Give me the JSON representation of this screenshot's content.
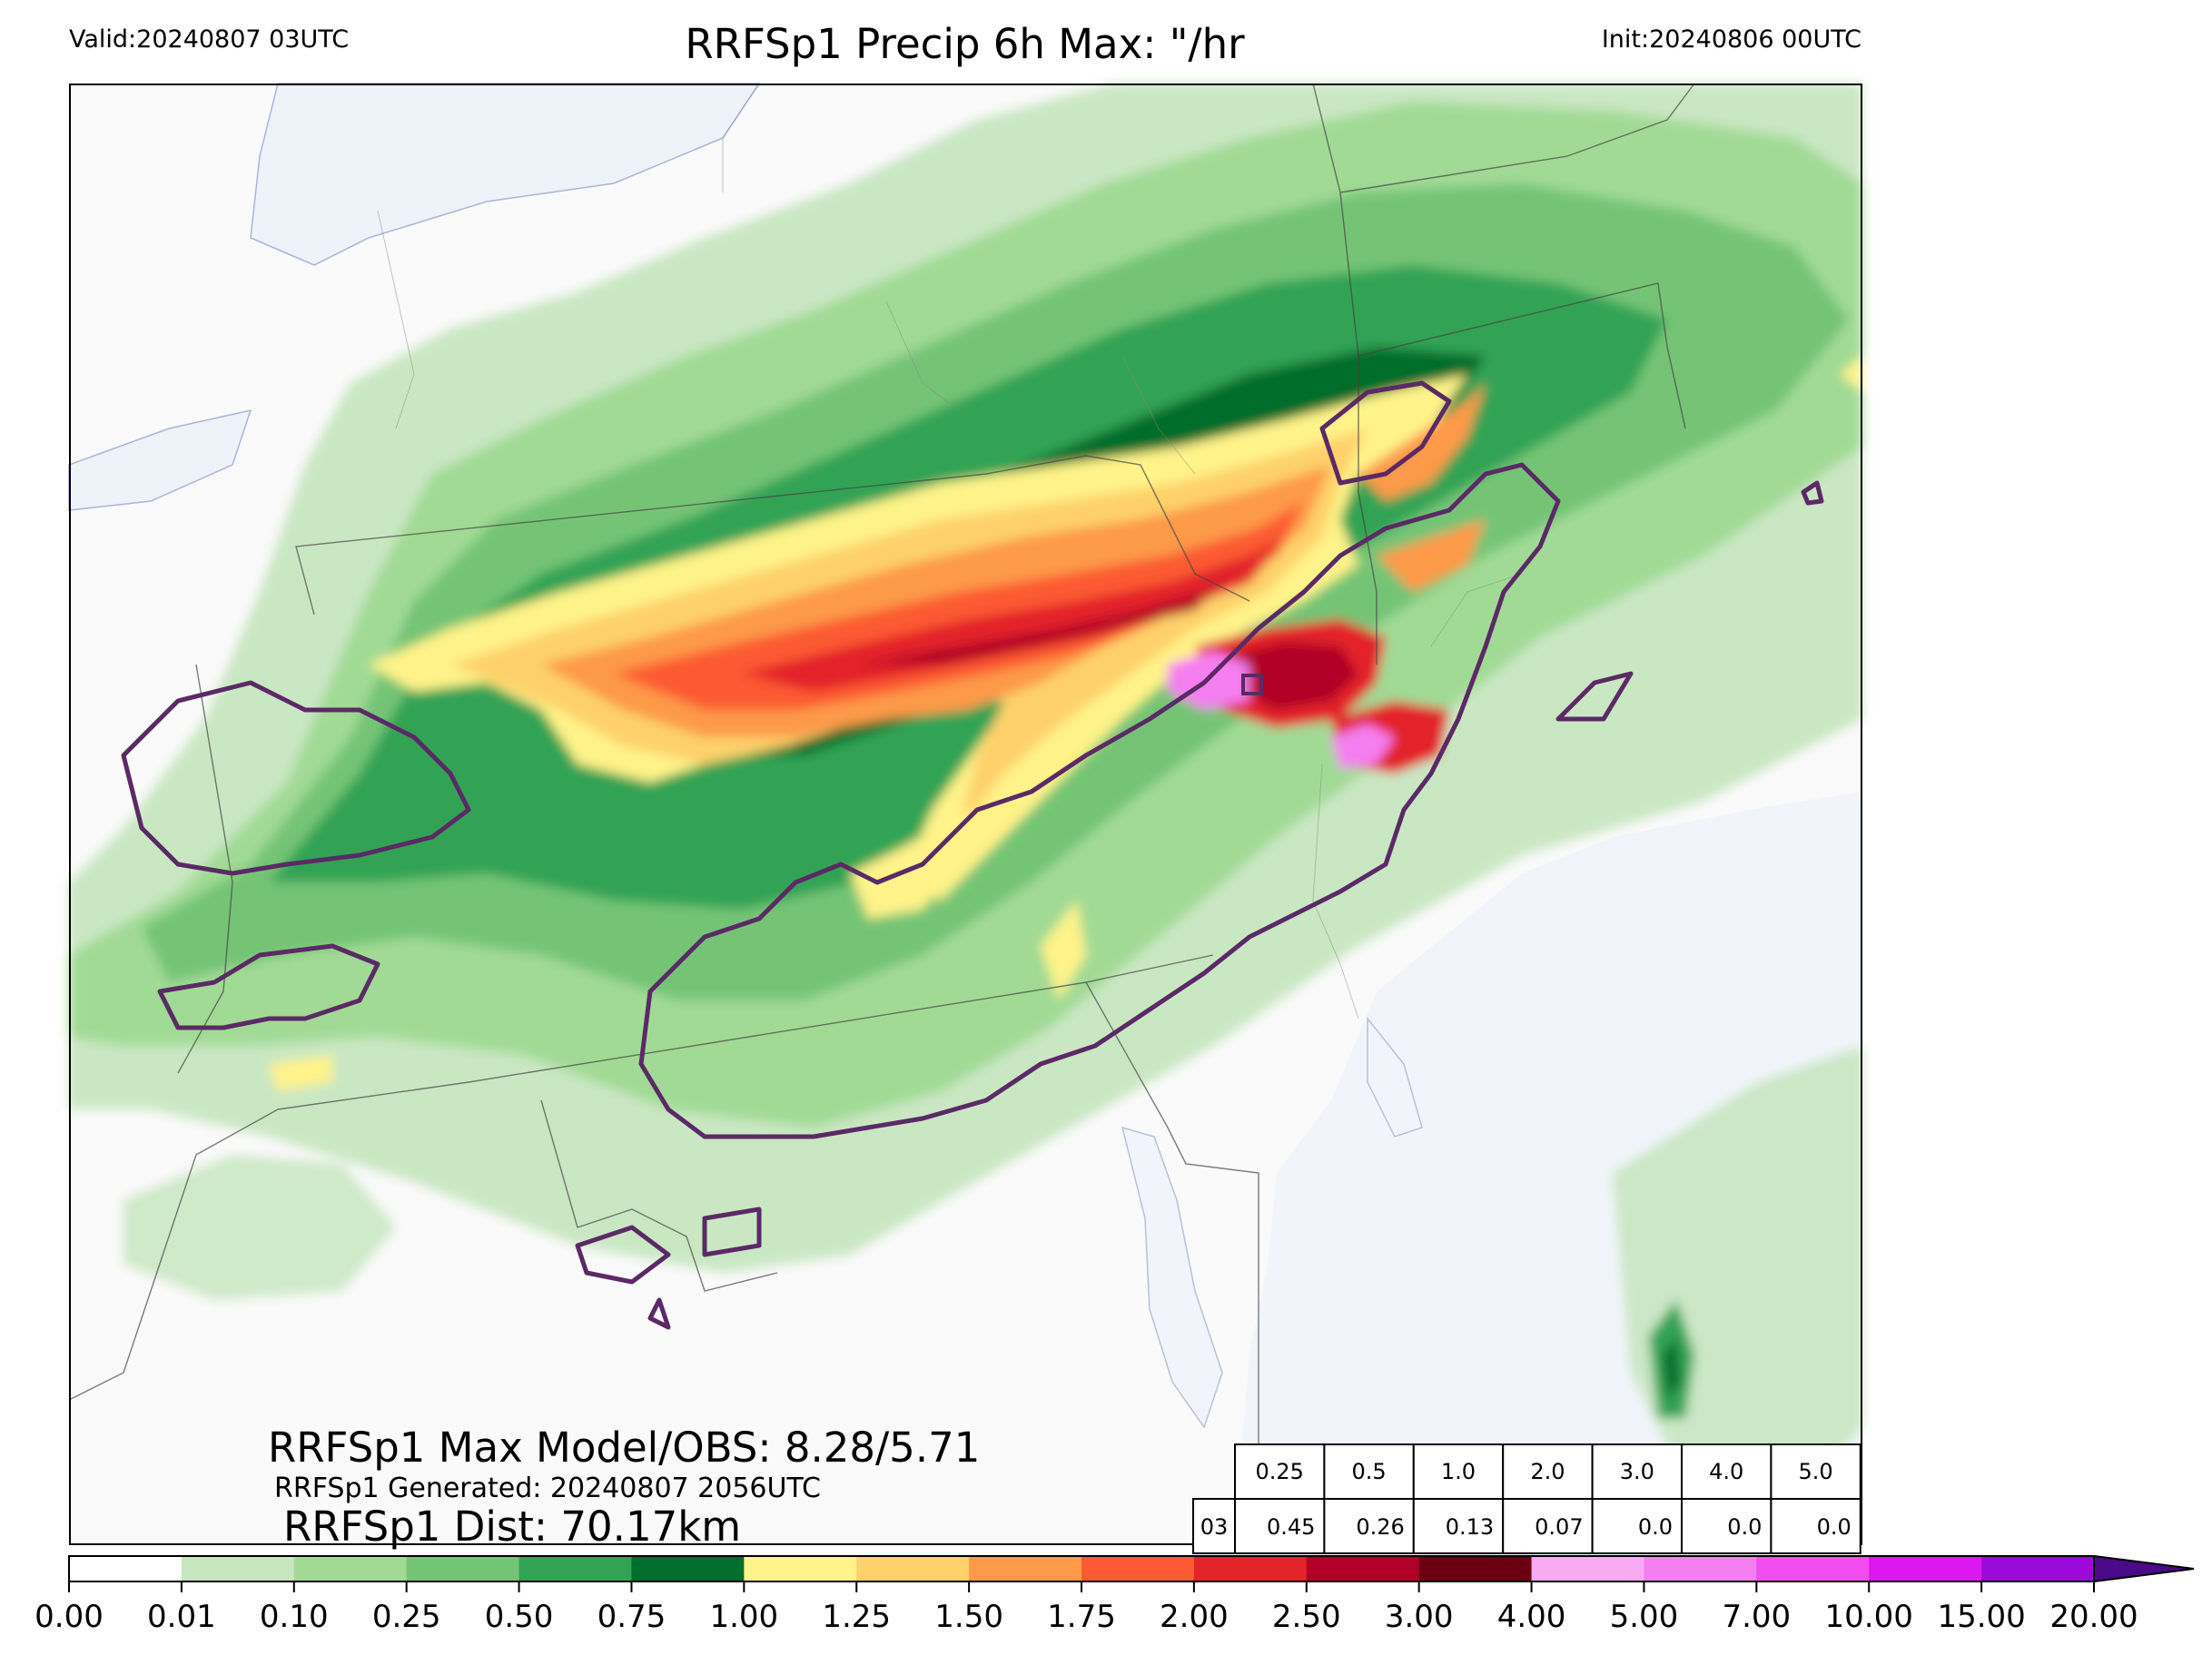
{
  "header": {
    "valid": "Valid:20240807 03UTC",
    "title": "RRFSp1 Precip 6h Max: \"/hr",
    "init": "Init:20240806 00UTC"
  },
  "stats": {
    "max_model_obs": "RRFSp1 Max Model/OBS: 8.28/5.71",
    "generated": "RRFSp1 Generated: 20240807 2056UTC",
    "dist": "RRFSp1 Dist: 70.17km"
  },
  "threshold_table": {
    "thresholds": [
      "0.25",
      "0.5",
      "1.0",
      "2.0",
      "3.0",
      "4.0",
      "5.0"
    ],
    "row_label": "03",
    "values": [
      "0.45",
      "0.26",
      "0.13",
      "0.07",
      "0.0",
      "0.0",
      "0.0"
    ]
  },
  "colorbar": {
    "ticks": [
      "0.00",
      "0.01",
      "0.10",
      "0.25",
      "0.50",
      "0.75",
      "1.00",
      "1.25",
      "1.50",
      "1.75",
      "2.00",
      "2.50",
      "3.00",
      "4.00",
      "5.00",
      "7.00",
      "10.00",
      "15.00",
      "20.00"
    ],
    "colors": [
      "#ffffff",
      "#c7e6c0",
      "#a1da95",
      "#74c476",
      "#31a354",
      "#006d2c",
      "#fff38a",
      "#fed16a",
      "#fd9a4a",
      "#fc5a33",
      "#e3232a",
      "#b10026",
      "#6b0010",
      "#f8aaf3",
      "#f57ef0",
      "#f24bee",
      "#dd17f0",
      "#9b0ad8"
    ]
  },
  "colors": {
    "land": "#fafafa",
    "water": "#f1f5fb",
    "obs_contour": "#5b2a66"
  }
}
